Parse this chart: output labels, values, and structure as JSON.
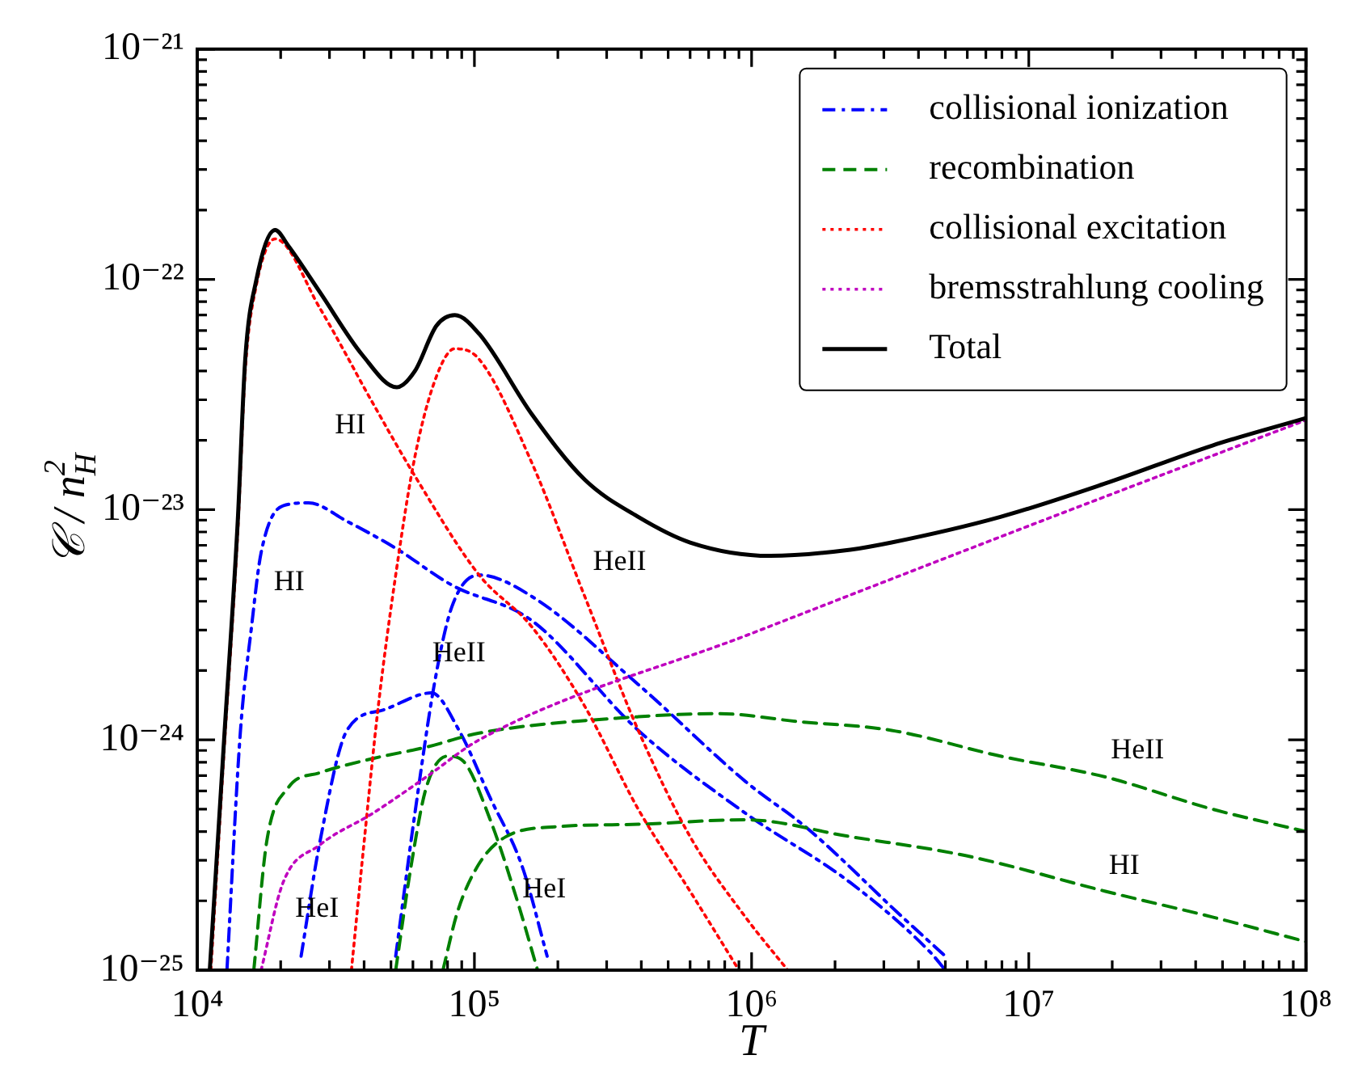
{
  "chart_data": {
    "type": "line",
    "xlabel": "T",
    "ylabel": "𝒞 / n$_{H}$$^{2}$",
    "log": "xy",
    "grid": false,
    "legend": "top right",
    "xlim": [
      10000,
      100000000
    ],
    "ylim": [
      1e-25,
      1e-21
    ],
    "xticks": [
      {
        "value": 10000,
        "label": "10⁴"
      },
      {
        "value": 20000,
        "label": null
      },
      {
        "value": 30000,
        "label": null
      },
      {
        "value": 40000,
        "label": null
      },
      {
        "value": 50000,
        "label": null
      },
      {
        "value": 60000,
        "label": null
      },
      {
        "value": 70000,
        "label": null
      },
      {
        "value": 80000,
        "label": null
      },
      {
        "value": 90000,
        "label": null
      },
      {
        "value": 100000,
        "label": "10⁵"
      },
      {
        "value": 200000,
        "label": null
      },
      {
        "value": 300000,
        "label": null
      },
      {
        "value": 400000,
        "label": null
      },
      {
        "value": 500000,
        "label": null
      },
      {
        "value": 600000,
        "label": null
      },
      {
        "value": 700000,
        "label": null
      },
      {
        "value": 800000,
        "label": null
      },
      {
        "value": 900000,
        "label": null
      },
      {
        "value": 1000000,
        "label": "10⁶"
      },
      {
        "value": 2000000,
        "label": null
      },
      {
        "value": 3000000,
        "label": null
      },
      {
        "value": 4000000,
        "label": null
      },
      {
        "value": 5000000,
        "label": null
      },
      {
        "value": 6000000,
        "label": null
      },
      {
        "value": 7000000,
        "label": null
      },
      {
        "value": 8000000,
        "label": null
      },
      {
        "value": 9000000,
        "label": null
      },
      {
        "value": 10000000,
        "label": "10⁷"
      },
      {
        "value": 20000000,
        "label": null
      },
      {
        "value": 30000000,
        "label": null
      },
      {
        "value": 40000000,
        "label": null
      },
      {
        "value": 50000000,
        "label": null
      },
      {
        "value": 60000000,
        "label": null
      },
      {
        "value": 70000000,
        "label": null
      },
      {
        "value": 80000000,
        "label": null
      },
      {
        "value": 90000000,
        "label": null
      },
      {
        "value": 100000000,
        "label": "10⁸"
      }
    ],
    "yticks": [
      {
        "value": 1e-25,
        "label": "10⁻²⁵"
      },
      {
        "value": 2e-25,
        "label": null
      },
      {
        "value": 3e-25,
        "label": null
      },
      {
        "value": 4e-25,
        "label": null
      },
      {
        "value": 5e-25,
        "label": null
      },
      {
        "value": 6e-25,
        "label": null
      },
      {
        "value": 7e-25,
        "label": null
      },
      {
        "value": 8e-25,
        "label": null
      },
      {
        "value": 9e-25,
        "label": null
      },
      {
        "value": 1e-24,
        "label": "10⁻²⁴"
      },
      {
        "value": 2e-24,
        "label": null
      },
      {
        "value": 3e-24,
        "label": null
      },
      {
        "value": 4e-24,
        "label": null
      },
      {
        "value": 5e-24,
        "label": null
      },
      {
        "value": 6e-24,
        "label": null
      },
      {
        "value": 7e-24,
        "label": null
      },
      {
        "value": 8e-24,
        "label": null
      },
      {
        "value": 9e-24,
        "label": null
      },
      {
        "value": 1e-23,
        "label": "10⁻²³"
      },
      {
        "value": 2e-23,
        "label": null
      },
      {
        "value": 3e-23,
        "label": null
      },
      {
        "value": 4e-23,
        "label": null
      },
      {
        "value": 5e-23,
        "label": null
      },
      {
        "value": 6e-23,
        "label": null
      },
      {
        "value": 7e-23,
        "label": null
      },
      {
        "value": 8e-23,
        "label": null
      },
      {
        "value": 9e-23,
        "label": null
      },
      {
        "value": 1e-22,
        "label": "10⁻²²"
      },
      {
        "value": 2e-22,
        "label": null
      },
      {
        "value": 3e-22,
        "label": null
      },
      {
        "value": 4e-22,
        "label": null
      },
      {
        "value": 5e-22,
        "label": null
      },
      {
        "value": 6e-22,
        "label": null
      },
      {
        "value": 7e-22,
        "label": null
      },
      {
        "value": 8e-22,
        "label": null
      },
      {
        "value": 9e-22,
        "label": null
      },
      {
        "value": 1e-21,
        "label": "10⁻²¹"
      }
    ],
    "series": [
      {
        "name": "collisional ionization",
        "color": "#0000ff",
        "line_style": "dashdot",
        "x": [
          12800,
          14300,
          15700,
          17000,
          20400,
          25200,
          34700,
          52000,
          83000,
          161000,
          390000,
          950000,
          2270000,
          4400000,
          5000000
        ],
        "values": [
          1e-25,
          1.07e-24,
          3.1e-24,
          6.5e-24,
          1.04e-23,
          1.07e-23,
          8.9e-24,
          6.8e-24,
          4.7e-24,
          3.3e-24,
          1.1e-24,
          4.8e-25,
          2.4e-25,
          1.2e-25,
          1e-25
        ]
      },
      {
        "color": "#0000ff",
        "line_style": "dashdot",
        "x": [
          23700,
          27700,
          34700,
          47000,
          70000,
          88000,
          114000,
          149000,
          183000
        ],
        "values": [
          1.15e-25,
          3.6e-25,
          1.1e-24,
          1.35e-24,
          1.6e-24,
          1.1e-24,
          5.6e-25,
          2.8e-25,
          1.15e-25
        ]
      },
      {
        "color": "#0000ff",
        "line_style": "dashdot",
        "x": [
          52000,
          61000,
          72000,
          83000,
          104000,
          161000,
          390000,
          950000,
          1600000,
          3500000,
          5000000
        ],
        "values": [
          1.15e-25,
          4.8e-25,
          1.8e-24,
          3.8e-24,
          5.2e-24,
          4.2e-24,
          1.74e-24,
          6.6e-25,
          4.1e-25,
          1.7e-25,
          1.15e-25
        ]
      },
      {
        "name": "recombination",
        "color": "#008000",
        "line_style": "dashed",
        "x": [
          16000,
          17800,
          21300,
          27700,
          43000,
          67000,
          104000,
          390000,
          760000,
          1480000,
          3200000,
          7900000,
          18900000,
          46000000,
          100000000
        ],
        "values": [
          1e-25,
          3.6e-25,
          6.2e-25,
          7.2e-25,
          8.3e-25,
          9.3e-25,
          1.07e-24,
          1.26e-24,
          1.3e-24,
          1.2e-24,
          1.1e-24,
          8.5e-25,
          6.9e-25,
          5e-25,
          4e-25
        ]
      },
      {
        "color": "#008000",
        "line_style": "dashed",
        "x": [
          77000,
          87000,
          104000,
          130000,
          200000,
          390000,
          950000,
          2270000,
          5500000,
          7900000,
          18900000,
          46000000,
          100000000
        ],
        "values": [
          1e-25,
          1.8e-25,
          2.9e-25,
          3.8e-25,
          4.2e-25,
          4.3e-25,
          4.5e-25,
          3.8e-25,
          3.2e-25,
          2.9e-25,
          2.2e-25,
          1.7e-25,
          1.33e-25
        ]
      },
      {
        "color": "#008000",
        "line_style": "dashed",
        "x": [
          52000,
          59000,
          67000,
          80000,
          91000,
          114000,
          141000,
          169000
        ],
        "values": [
          1e-25,
          2.8e-25,
          6.2e-25,
          8.5e-25,
          8.1e-25,
          4.5e-25,
          2.1e-25,
          1e-25
        ]
      },
      {
        "name": "collisional excitation",
        "color": "#ff0000",
        "line_style": "dotted",
        "x": [
          11200,
          12500,
          14000,
          14900,
          16300,
          19100,
          27700,
          43000,
          61000,
          104000,
          161000,
          250000,
          390000,
          600000,
          900000
        ],
        "values": [
          1e-25,
          9e-25,
          8e-24,
          4e-23,
          9.3e-23,
          1.5e-22,
          7.5e-23,
          2.9e-23,
          1.4e-23,
          5.2e-24,
          3.1e-24,
          1.4e-24,
          5e-25,
          2.2e-25,
          1e-25
        ]
      },
      {
        "color": "#ff0000",
        "line_style": "dotted",
        "x": [
          36000,
          40000,
          45000,
          52000,
          61000,
          73000,
          85000,
          104000,
          161000,
          250000,
          390000,
          600000,
          950000,
          1350000
        ],
        "values": [
          1e-25,
          3.6e-25,
          1.4e-24,
          5.2e-24,
          1.7e-23,
          3.8e-23,
          5e-23,
          4.5e-23,
          1.6e-23,
          4.2e-24,
          1.1e-24,
          3.8e-25,
          1.7e-25,
          1e-25
        ]
      },
      {
        "name": "bremsstrahlung cooling",
        "color": "#bf00bf",
        "line_style": "dotted",
        "x": [
          17000,
          20400,
          27700,
          43000,
          67000,
          104000,
          1000000,
          10000000,
          100000000
        ],
        "values": [
          1e-25,
          2.4e-25,
          3.5e-25,
          4.8e-25,
          6.9e-25,
          1e-24,
          2.9e-24,
          8.5e-24,
          2.45e-23
        ]
      },
      {
        "name": "Total",
        "color": "#000000",
        "line_style": "solid",
        "x": [
          11100,
          12500,
          14000,
          14900,
          16300,
          19100,
          21300,
          27700,
          39400,
          52500,
          61000,
          73000,
          85000,
          104000,
          161000,
          250000,
          390000,
          600000,
          1170000,
          2270000,
          3200000,
          7900000,
          18900000,
          46000000,
          100000000
        ],
        "values": [
          1e-25,
          1e-24,
          8.9e-24,
          4.5e-23,
          9.8e-23,
          1.64e-22,
          1.4e-22,
          8.8e-23,
          4.7e-23,
          3.4e-23,
          4e-23,
          6.3e-23,
          7e-23,
          5.8e-23,
          2.6e-23,
          1.35e-23,
          9.3e-24,
          7.2e-24,
          6.3e-24,
          6.7e-24,
          7.2e-24,
          9.3e-24,
          1.3e-23,
          1.9e-23,
          2.5e-23
        ]
      }
    ],
    "annotations": [
      "HI",
      "HI",
      "HeII",
      "HeII",
      "HeI",
      "HeI",
      "HeII",
      "HI"
    ]
  }
}
